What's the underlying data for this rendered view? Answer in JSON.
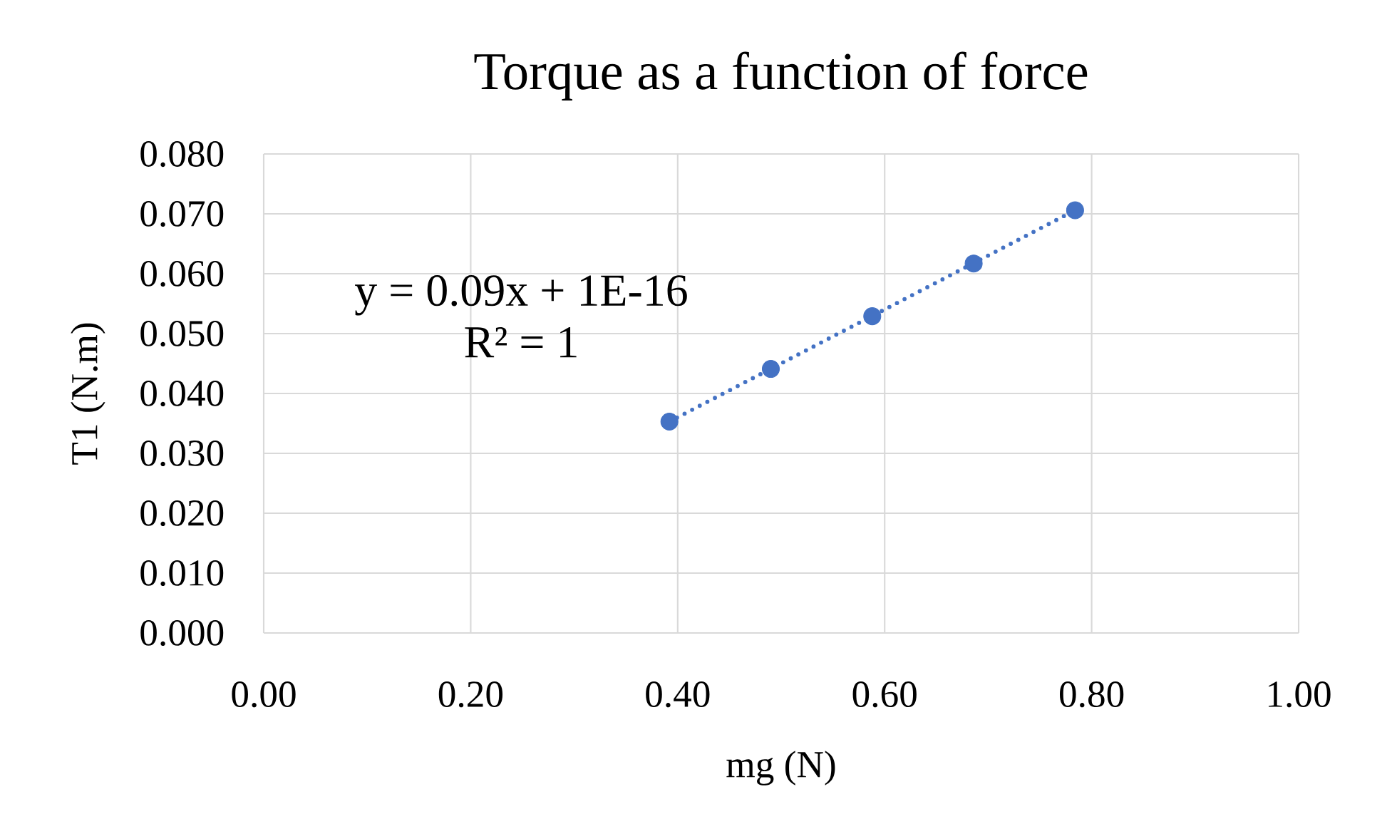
{
  "chart_data": {
    "type": "scatter",
    "title": "Torque as a function of force",
    "xlabel": "mg (N)",
    "ylabel": "T1 (N.m)",
    "annotations": [
      "y = 0.09x + 1E-16",
      "R² = 1"
    ],
    "series": [
      {
        "color": "#4472c4",
        "marker": "circle",
        "x": [
          0.392,
          0.49,
          0.588,
          0.686,
          0.784
        ],
        "values": [
          0.0353,
          0.0441,
          0.0529,
          0.0617,
          0.0706
        ]
      },
      {
        "type": "line",
        "color": "#4472c4",
        "line_style": "dotted",
        "marker": "none",
        "x": [
          0.392,
          0.784
        ],
        "values": [
          0.0353,
          0.0706
        ]
      }
    ],
    "xlim": [
      0,
      1
    ],
    "ylim": [
      0,
      0.08
    ],
    "xticks": [
      {
        "value": 0,
        "label": "0.00"
      },
      {
        "value": 0.2,
        "label": "0.20"
      },
      {
        "value": 0.4,
        "label": "0.40"
      },
      {
        "value": 0.6,
        "label": "0.60"
      },
      {
        "value": 0.8,
        "label": "0.80"
      },
      {
        "value": 1,
        "label": "1.00"
      }
    ],
    "yticks": [
      {
        "value": 0,
        "label": "0.000"
      },
      {
        "value": 0.01,
        "label": "0.010"
      },
      {
        "value": 0.02,
        "label": "0.020"
      },
      {
        "value": 0.03,
        "label": "0.030"
      },
      {
        "value": 0.04,
        "label": "0.040"
      },
      {
        "value": 0.05,
        "label": "0.050"
      },
      {
        "value": 0.06,
        "label": "0.060"
      },
      {
        "value": 0.07,
        "label": "0.070"
      },
      {
        "value": 0.08,
        "label": "0.080"
      }
    ],
    "grid": true
  }
}
